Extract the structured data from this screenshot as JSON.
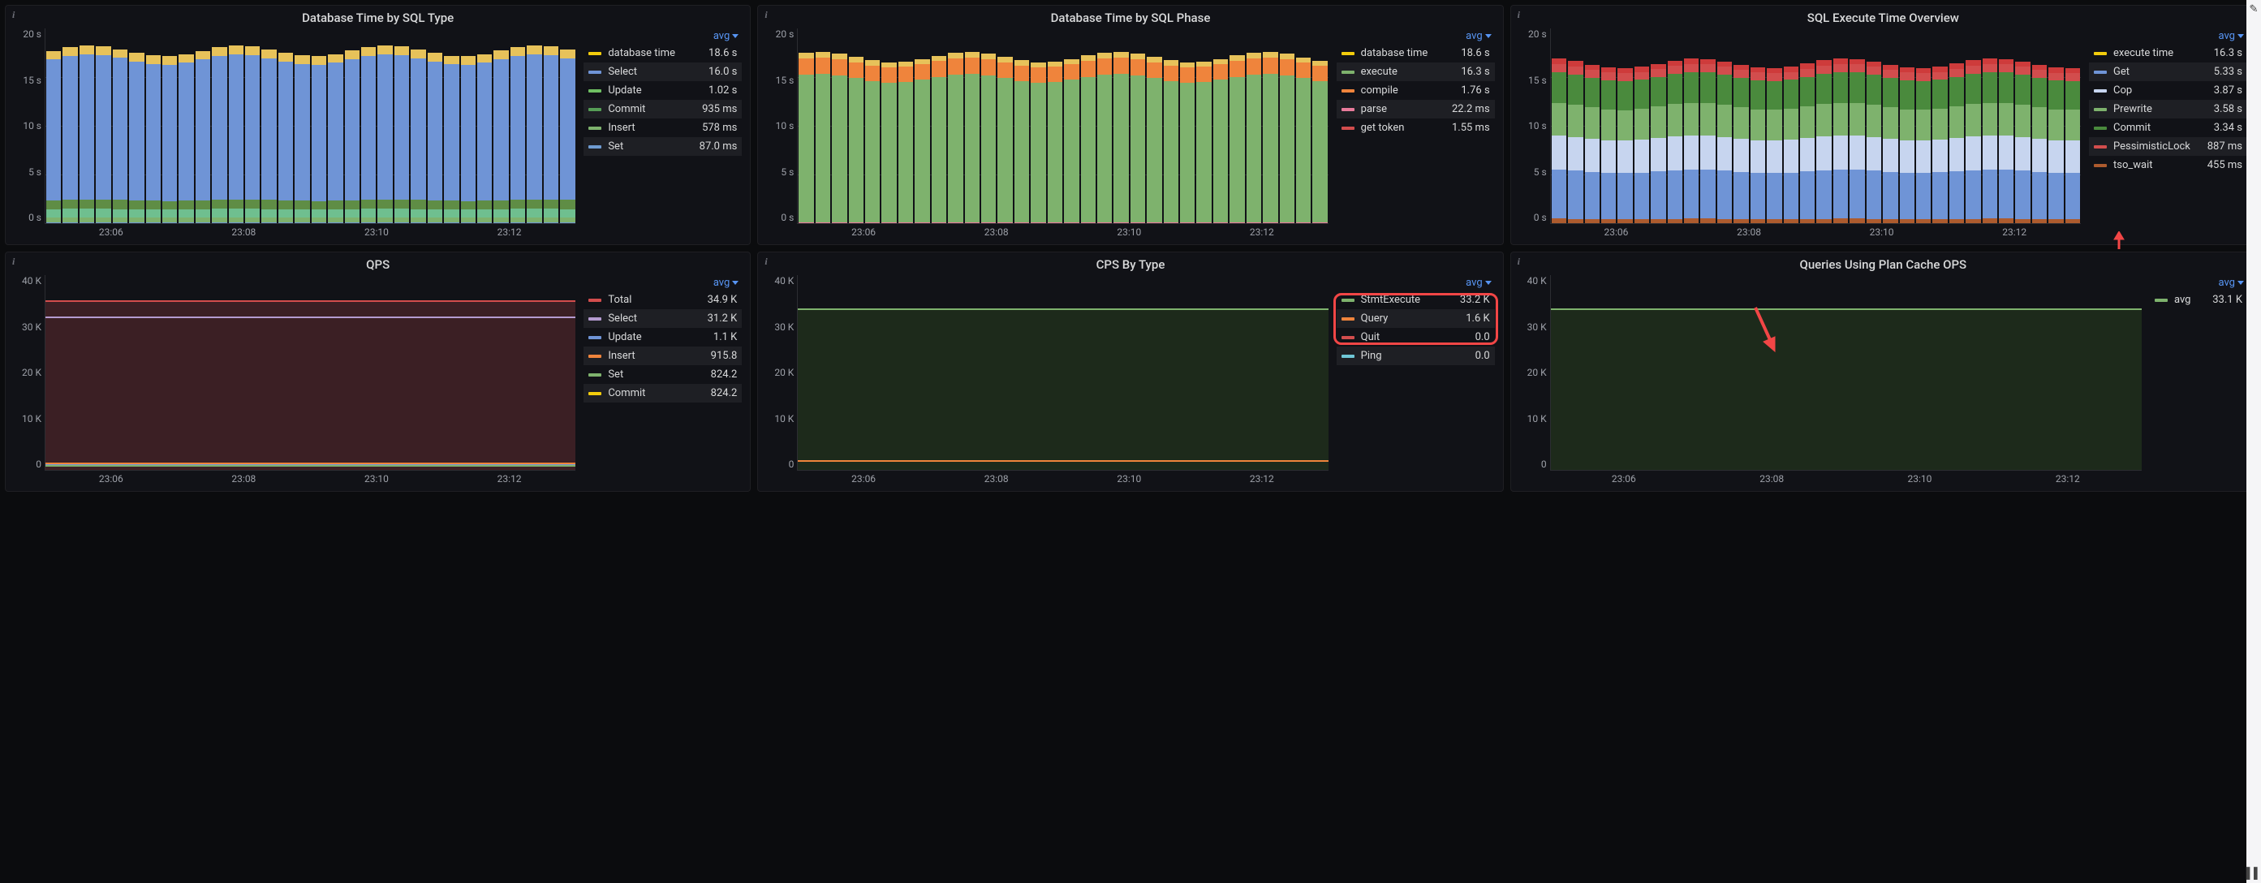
{
  "colors": {
    "bg": "#0b0c0e",
    "panel": "#111217",
    "grid": "#2c2d32",
    "text": "#ccccdc",
    "accent": "#5794f2",
    "annotation": "#f24646"
  },
  "x_ticks": [
    "23:06",
    "23:08",
    "23:10",
    "23:12"
  ],
  "panels": [
    {
      "id": "db_time_sql_type",
      "title": "Database Time by SQL Type",
      "chart_type": "stacked_bar",
      "agg": "avg",
      "y_ticks": [
        "20 s",
        "15 s",
        "10 s",
        "5 s",
        "0 s"
      ],
      "y_max": 20,
      "stack": [
        {
          "key": "Set",
          "h": 0.4,
          "color": "#6e9bd1"
        },
        {
          "key": "Insert",
          "h": 2.9,
          "color": "#7eb26d"
        },
        {
          "key": "Commit",
          "h": 4.7,
          "color": "#6fbf8f"
        },
        {
          "key": "Update",
          "h": 5.1,
          "color": "#5f8d45"
        },
        {
          "key": "Select",
          "h": 80,
          "color": "#6f94d6"
        },
        {
          "key": "top",
          "h": 5,
          "color": "#e7c25a"
        }
      ],
      "legend": [
        {
          "label": "database time",
          "value": "18.6 s",
          "color": "#f2cc0c"
        },
        {
          "label": "Select",
          "value": "16.0 s",
          "color": "#6f94d6"
        },
        {
          "label": "Update",
          "value": "1.02 s",
          "color": "#6fbf62"
        },
        {
          "label": "Commit",
          "value": "935 ms",
          "color": "#569e56"
        },
        {
          "label": "Insert",
          "value": "578 ms",
          "color": "#7eb26d"
        },
        {
          "label": "Set",
          "value": "87.0 ms",
          "color": "#6e9bd1"
        }
      ]
    },
    {
      "id": "db_time_sql_phase",
      "title": "Database Time by SQL Phase",
      "chart_type": "stacked_bar",
      "agg": "avg",
      "y_ticks": [
        "20 s",
        "15 s",
        "10 s",
        "5 s",
        "0 s"
      ],
      "y_max": 20,
      "stack": [
        {
          "key": "get_token",
          "h": 0.2,
          "color": "#d24d4d"
        },
        {
          "key": "parse",
          "h": 0.3,
          "color": "#e87b9b"
        },
        {
          "key": "execute",
          "h": 82,
          "color": "#7eb26d"
        },
        {
          "key": "compile",
          "h": 9,
          "color": "#ef843c"
        },
        {
          "key": "top",
          "h": 3,
          "color": "#e7c25a"
        }
      ],
      "legend": [
        {
          "label": "database time",
          "value": "18.6 s",
          "color": "#f2cc0c"
        },
        {
          "label": "execute",
          "value": "16.3 s",
          "color": "#7eb26d"
        },
        {
          "label": "compile",
          "value": "1.76 s",
          "color": "#ef843c"
        },
        {
          "label": "parse",
          "value": "22.2 ms",
          "color": "#e87b9b"
        },
        {
          "label": "get token",
          "value": "1.55 ms",
          "color": "#d24d4d"
        }
      ]
    },
    {
      "id": "sql_execute_overview",
      "title": "SQL Execute Time Overview",
      "chart_type": "stacked_bar",
      "agg": "avg",
      "y_ticks": [
        "20 s",
        "15 s",
        "10 s",
        "5 s",
        "0 s"
      ],
      "y_max": 20,
      "stack": [
        {
          "key": "tso_wait",
          "h": 2.5,
          "color": "#ad5b2e"
        },
        {
          "key": "Get",
          "h": 27,
          "color": "#6f94d6"
        },
        {
          "key": "Cop",
          "h": 19,
          "color": "#c7d5ef"
        },
        {
          "key": "Prewrite",
          "h": 18,
          "color": "#7eb26d"
        },
        {
          "key": "Commit",
          "h": 17,
          "color": "#4a8a3d"
        },
        {
          "key": "Pess",
          "h": 4.5,
          "color": "#d24d4d"
        },
        {
          "key": "exec",
          "h": 3,
          "color": "#ce3b3b"
        }
      ],
      "legend": [
        {
          "label": "execute time",
          "value": "16.3 s",
          "color": "#f2cc0c"
        },
        {
          "label": "Get",
          "value": "5.33 s",
          "color": "#6f94d6"
        },
        {
          "label": "Cop",
          "value": "3.87 s",
          "color": "#c7d5ef"
        },
        {
          "label": "Prewrite",
          "value": "3.58 s",
          "color": "#7eb26d"
        },
        {
          "label": "Commit",
          "value": "3.34 s",
          "color": "#4a8a3d"
        },
        {
          "label": "PessimisticLock",
          "value": "887 ms",
          "color": "#d24d4d"
        },
        {
          "label": "tso_wait",
          "value": "455 ms",
          "color": "#ad5b2e"
        }
      ]
    },
    {
      "id": "qps",
      "title": "QPS",
      "chart_type": "area_line",
      "agg": "avg",
      "y_ticks": [
        "40 K",
        "30 K",
        "20 K",
        "10 K",
        "0"
      ],
      "y_max": 40,
      "area": {
        "level": 87,
        "fill": "#3b1f24",
        "top_color": "#d24d4d"
      },
      "lines": [
        {
          "level": 78,
          "color": "#b49bd0"
        },
        {
          "level": 3,
          "color": "#ef843c"
        },
        {
          "level": 2,
          "color": "#6f94d6"
        },
        {
          "level": 1.5,
          "color": "#7eb26d"
        }
      ],
      "legend": [
        {
          "label": "Total",
          "value": "34.9 K",
          "color": "#d24d4d"
        },
        {
          "label": "Select",
          "value": "31.2 K",
          "color": "#b49bd0"
        },
        {
          "label": "Update",
          "value": "1.1 K",
          "color": "#6f94d6"
        },
        {
          "label": "Insert",
          "value": "915.8",
          "color": "#ef843c"
        },
        {
          "label": "Set",
          "value": "824.2",
          "color": "#7eb26d"
        },
        {
          "label": "Commit",
          "value": "824.2",
          "color": "#f2cc0c"
        }
      ]
    },
    {
      "id": "cps_by_type",
      "title": "CPS By Type",
      "chart_type": "area_line",
      "agg": "avg",
      "y_ticks": [
        "40 K",
        "30 K",
        "20 K",
        "10 K",
        "0"
      ],
      "y_max": 40,
      "area": {
        "level": 83,
        "fill": "#1d2a1b",
        "top_color": "#7eb26d"
      },
      "lines": [
        {
          "level": 4,
          "color": "#ef843c"
        }
      ],
      "legend": [
        {
          "label": "StmtExecute",
          "value": "33.2 K",
          "color": "#7eb26d"
        },
        {
          "label": "Query",
          "value": "1.6 K",
          "color": "#ef843c"
        },
        {
          "label": "Quit",
          "value": "0.0",
          "color": "#d24d4d"
        },
        {
          "label": "Ping",
          "value": "0.0",
          "color": "#6fc7d6"
        }
      ],
      "highlight_rows": [
        0,
        1
      ]
    },
    {
      "id": "plan_cache_ops",
      "title": "Queries Using Plan Cache OPS",
      "chart_type": "area_line",
      "agg": "avg",
      "y_ticks": [
        "40 K",
        "30 K",
        "20 K",
        "10 K",
        "0"
      ],
      "y_max": 40,
      "area": {
        "level": 83,
        "fill": "#1d2a1b",
        "top_color": "#7eb26d"
      },
      "lines": [],
      "legend": [
        {
          "label": "avg",
          "value": "33.1 K",
          "color": "#7eb26d"
        }
      ]
    }
  ],
  "legend_width_narrow": 120
}
